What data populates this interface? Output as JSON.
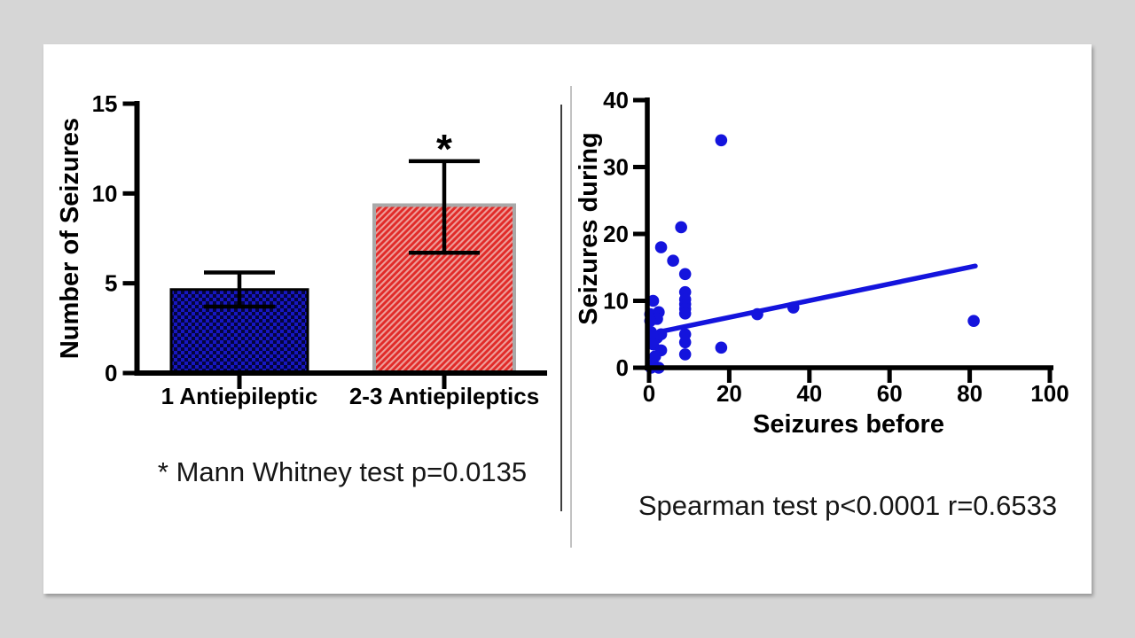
{
  "page": {
    "background_color": "#d6d6d6",
    "slide_color": "#ffffff"
  },
  "chart_data": [
    {
      "type": "bar",
      "title": "",
      "xlabel": "",
      "ylabel": "Number of Seizures",
      "ylim": [
        0,
        15
      ],
      "yticks": [
        0,
        5,
        10,
        15
      ],
      "grid": false,
      "categories": [
        "1 Antiepileptic",
        "2-3 Antiepileptics"
      ],
      "values": [
        4.65,
        9.35
      ],
      "error_low": [
        3.7,
        6.7
      ],
      "error_high": [
        5.6,
        11.8
      ],
      "significance_label": "*",
      "significance_category_index": 1,
      "annotation": "* Mann Whitney test p=0.0135",
      "bar_styles": [
        {
          "name": "bar-1-antiepileptic",
          "base_color": "#05053c",
          "pattern": "checker",
          "pattern_color": "#1717c2",
          "border_color": "#000000",
          "border_width": 3
        },
        {
          "name": "bar-2-3-antiepileptics",
          "base_color": "#e12a28",
          "pattern": "diagonal",
          "pattern_color": "#ee9e9a",
          "border_color": "#a9a9a9",
          "border_width": 4
        }
      ],
      "axis_color": "#000000"
    },
    {
      "type": "scatter",
      "title": "",
      "xlabel": "Seizures before",
      "ylabel": "Seizures during",
      "xlim": [
        0,
        100
      ],
      "ylim": [
        0,
        40
      ],
      "xticks": [
        0,
        20,
        40,
        60,
        80,
        100
      ],
      "yticks": [
        0,
        10,
        20,
        30,
        40
      ],
      "grid": false,
      "marker_color": "#1414dd",
      "line_color": "#1414dd",
      "points": [
        [
          18,
          34
        ],
        [
          8,
          21
        ],
        [
          3,
          18
        ],
        [
          6,
          16
        ],
        [
          9,
          14
        ],
        [
          9,
          11.3
        ],
        [
          9,
          10.2
        ],
        [
          9,
          9.5
        ],
        [
          9,
          8.8
        ],
        [
          9,
          8.1
        ],
        [
          9,
          5
        ],
        [
          9,
          3.8
        ],
        [
          9,
          2
        ],
        [
          1,
          10
        ],
        [
          0.3,
          8
        ],
        [
          2.4,
          8.3
        ],
        [
          2,
          7.3
        ],
        [
          0.3,
          7
        ],
        [
          3,
          5
        ],
        [
          2,
          4.5
        ],
        [
          0.5,
          5.3
        ],
        [
          1,
          4.6
        ],
        [
          1,
          3.5
        ],
        [
          3,
          2.6
        ],
        [
          1.5,
          1.7
        ],
        [
          1,
          0.5
        ],
        [
          0.5,
          0
        ],
        [
          2.4,
          0
        ],
        [
          27,
          8
        ],
        [
          36,
          9
        ],
        [
          81,
          7
        ],
        [
          18,
          3
        ]
      ],
      "trendline": {
        "x1": 2.9,
        "y1": 5.4,
        "x2": 81.4,
        "y2": 15.2
      },
      "annotation": "Spearman test p<0.0001 r=0.6533"
    }
  ]
}
